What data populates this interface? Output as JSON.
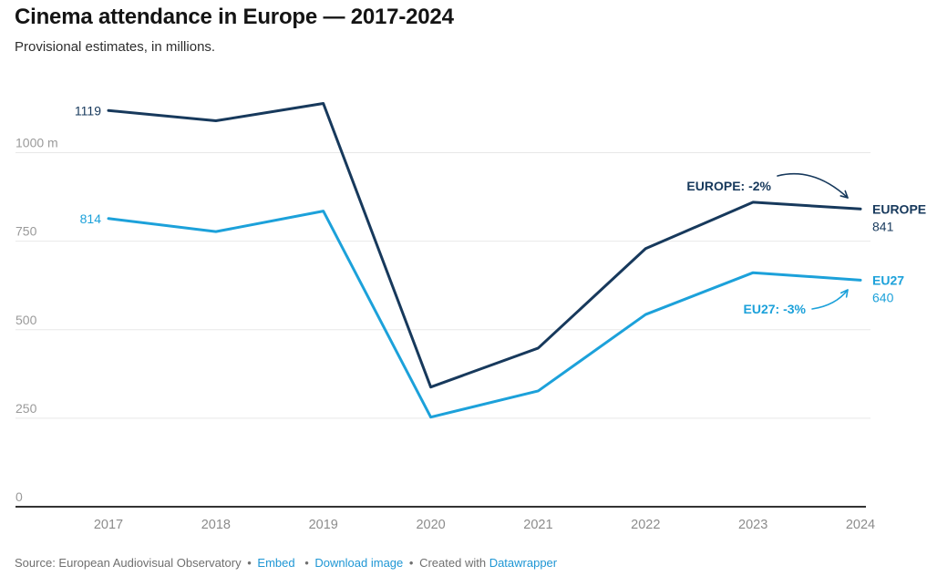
{
  "header": {
    "title": "Cinema attendance in Europe — 2017-2024",
    "subtitle": "Provisional estimates, in millions."
  },
  "chart_data": {
    "type": "line",
    "title": "Cinema attendance in Europe — 2017-2024",
    "subtitle": "Provisional estimates, in millions.",
    "x": [
      2017,
      2018,
      2019,
      2020,
      2021,
      2022,
      2023,
      2024
    ],
    "series": [
      {
        "name": "EUROPE",
        "color": "#17395c",
        "values": [
          1119,
          1090,
          1139,
          338,
          448,
          729,
          860,
          841
        ],
        "start_label": "1119",
        "end_label": "EUROPE",
        "end_value_label": "841"
      },
      {
        "name": "EU27",
        "color": "#1ca1da",
        "values": [
          814,
          777,
          835,
          253,
          327,
          543,
          661,
          640
        ],
        "start_label": "814",
        "end_label": "EU27",
        "end_value_label": "640"
      }
    ],
    "ylim": [
      0,
      1160
    ],
    "yticks": [
      {
        "value": 1000,
        "label": "1000 m"
      },
      {
        "value": 750,
        "label": "750"
      },
      {
        "value": 500,
        "label": "500"
      },
      {
        "value": 250,
        "label": "250"
      },
      {
        "value": 0,
        "label": "0"
      }
    ],
    "grid": "horizontal",
    "legend_position": "direct-line-labels",
    "annotations": [
      {
        "id": "europe-annotation",
        "text": "EUROPE: -2%",
        "color": "#17395c",
        "x": 846,
        "y": 209,
        "anchor": "end",
        "arrow": {
          "from": [
            853,
            193
          ],
          "ctrl": [
            893,
            183
          ],
          "to": [
            930,
            217
          ]
        }
      },
      {
        "id": "eu27-annotation",
        "text": "EU27: -3%",
        "color": "#1ca1da",
        "x": 884,
        "y": 344,
        "anchor": "end",
        "arrow": {
          "from": [
            891,
            339
          ],
          "ctrl": [
            917,
            335
          ],
          "to": [
            930,
            318
          ]
        }
      }
    ],
    "axis_colors": {
      "grid": "#e8e8e8",
      "baseline": "#333333",
      "y_tick_text": "#9a9a9a",
      "x_tick_text": "#8c8c8c"
    }
  },
  "footer": {
    "source_text": "Source: European Audiovisual Observatory",
    "separator": "•",
    "embed_link": "Embed",
    "download_link": "Download image",
    "created_with": "Created with",
    "brand_link": "Datawrapper"
  }
}
